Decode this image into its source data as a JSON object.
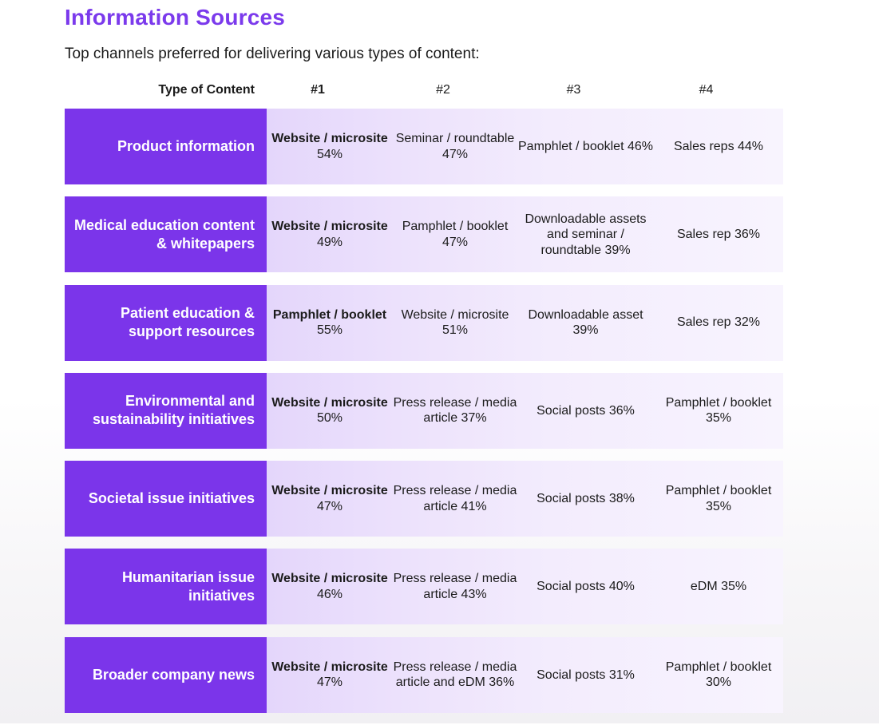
{
  "title": "Information Sources",
  "subtitle": "Top channels preferred for delivering various types of content:",
  "header": {
    "type": "Type of Content",
    "rank1": "#1",
    "rank2": "#2",
    "rank3": "#3",
    "rank4": "#4"
  },
  "rows": [
    {
      "label": "Product information",
      "c1": {
        "channel": "Website / microsite",
        "pct": "54%"
      },
      "c2": "Seminar / roundtable 47%",
      "c3": "Pamphlet / booklet 46%",
      "c4": "Sales reps 44%"
    },
    {
      "label": "Medical education content & whitepapers",
      "c1": {
        "channel": "Website / microsite",
        "pct": "49%"
      },
      "c2": "Pamphlet / booklet 47%",
      "c3": "Downloadable assets and seminar / roundtable 39%",
      "c4": "Sales rep 36%"
    },
    {
      "label": "Patient education & support resources",
      "c1": {
        "channel": "Pamphlet / booklet",
        "pct": "55%"
      },
      "c2": "Website / microsite 51%",
      "c3": "Downloadable asset 39%",
      "c4": "Sales rep 32%"
    },
    {
      "label": "Environmental and sustainability initiatives",
      "c1": {
        "channel": "Website / microsite",
        "pct": "50%"
      },
      "c2": "Press release / media article 37%",
      "c3": "Social posts 36%",
      "c4": "Pamphlet / booklet 35%"
    },
    {
      "label": "Societal issue initiatives",
      "c1": {
        "channel": "Website / microsite",
        "pct": "47%"
      },
      "c2": "Press release / media article 41%",
      "c3": "Social posts 38%",
      "c4": "Pamphlet / booklet 35%"
    },
    {
      "label": "Humanitarian issue initiatives",
      "c1": {
        "channel": "Website / microsite",
        "pct": "46%"
      },
      "c2": "Press release / media article 43%",
      "c3": "Social posts 40%",
      "c4": "eDM 35%"
    },
    {
      "label": "Broader company news",
      "c1": {
        "channel": "Website / microsite",
        "pct": "47%"
      },
      "c2": "Press release / media article and eDM 36%",
      "c3": "Social posts 31%",
      "c4": "Pamphlet / booklet 30%"
    }
  ]
}
